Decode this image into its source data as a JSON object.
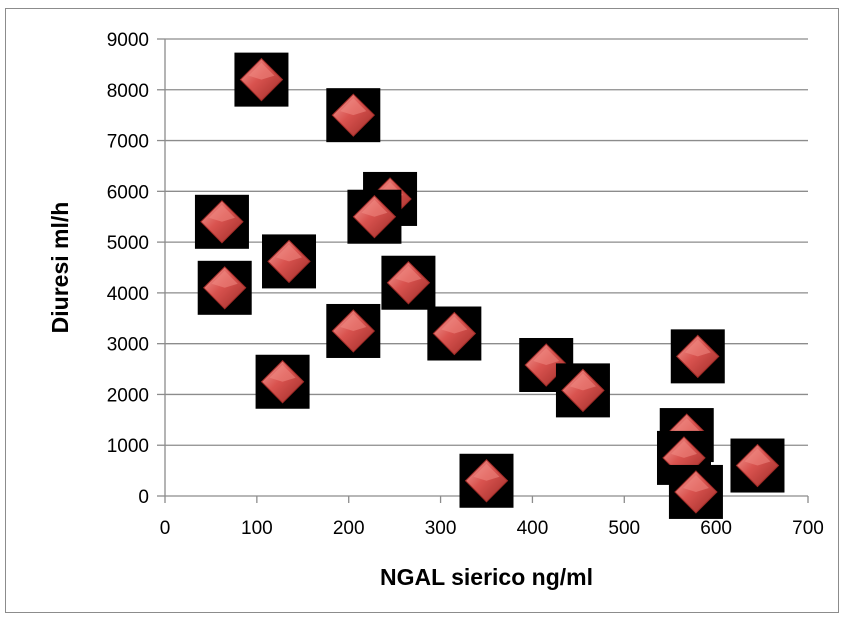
{
  "chart_data": {
    "type": "scatter",
    "title": "",
    "xlabel": "NGAL sierico ng/ml",
    "ylabel": "Diuresi ml/h",
    "xlim": [
      0,
      700
    ],
    "ylim": [
      0,
      9000
    ],
    "x_ticks": [
      "0",
      "100",
      "200",
      "300",
      "400",
      "500",
      "600",
      "700"
    ],
    "y_ticks": [
      "0",
      "1000",
      "2000",
      "3000",
      "4000",
      "5000",
      "6000",
      "7000",
      "8000",
      "9000"
    ],
    "grid": "horizontal",
    "legend": "none",
    "marker": "diamond",
    "colors": {
      "marker": "#d9534f",
      "marker_highlight": "#f08a84",
      "marker_shadow": "#9e2b27",
      "marker_background": "#000000",
      "gridline": "#8c8c8c",
      "axis": "#8c8c8c"
    },
    "series": [
      {
        "points": [
          {
            "x": 105,
            "y": 8200
          },
          {
            "x": 205,
            "y": 7500
          },
          {
            "x": 245,
            "y": 5850
          },
          {
            "x": 228,
            "y": 5500
          },
          {
            "x": 62,
            "y": 5400
          },
          {
            "x": 135,
            "y": 4620
          },
          {
            "x": 65,
            "y": 4100
          },
          {
            "x": 265,
            "y": 4200
          },
          {
            "x": 205,
            "y": 3250
          },
          {
            "x": 315,
            "y": 3200
          },
          {
            "x": 128,
            "y": 2250
          },
          {
            "x": 415,
            "y": 2580
          },
          {
            "x": 455,
            "y": 2080
          },
          {
            "x": 580,
            "y": 2750
          },
          {
            "x": 568,
            "y": 1200
          },
          {
            "x": 565,
            "y": 750
          },
          {
            "x": 645,
            "y": 600
          },
          {
            "x": 350,
            "y": 300
          },
          {
            "x": 578,
            "y": 80
          }
        ]
      }
    ]
  }
}
